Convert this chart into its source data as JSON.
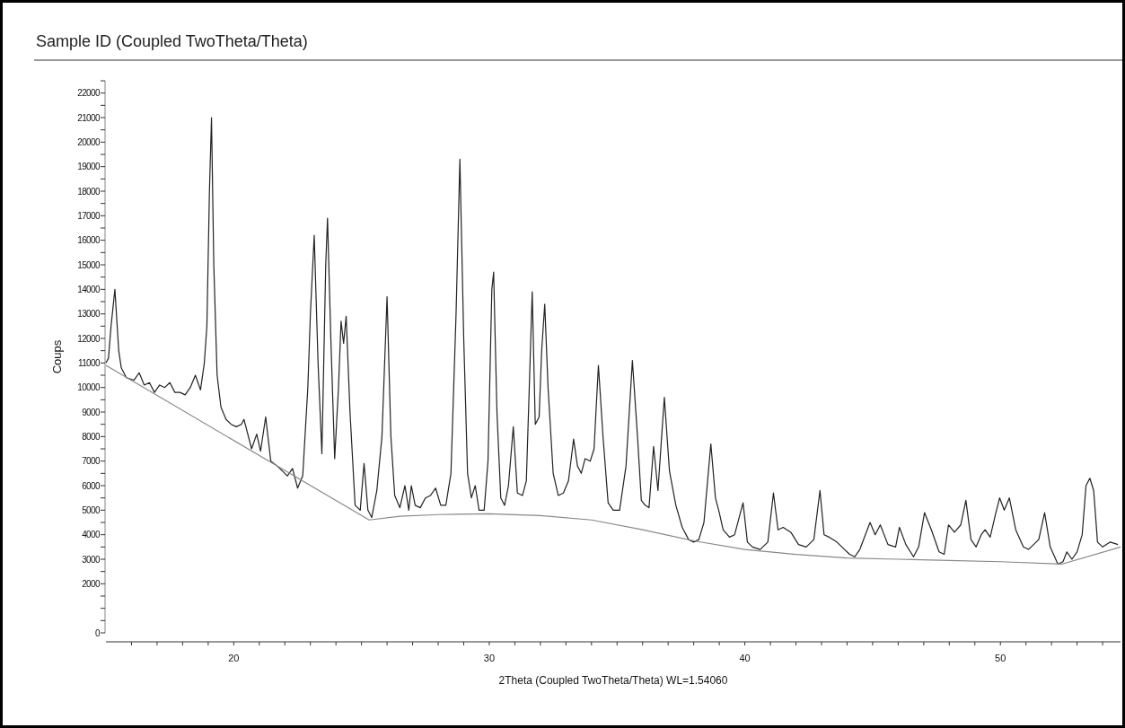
{
  "chart_data": {
    "type": "line",
    "title": "Sample ID (Coupled TwoTheta/Theta)",
    "xlabel": "2Theta (Coupled TwoTheta/Theta) WL=1.54060",
    "ylabel": "Coups",
    "xlim": [
      15,
      54.7
    ],
    "ylim": [
      0,
      22500
    ],
    "xticks": [
      {
        "value": 16,
        "label": null
      },
      {
        "value": 17,
        "label": null
      },
      {
        "value": 18,
        "label": null
      },
      {
        "value": 19,
        "label": null
      },
      20,
      {
        "value": 21,
        "label": null
      },
      {
        "value": 22,
        "label": null
      },
      {
        "value": 23,
        "label": null
      },
      {
        "value": 24,
        "label": null
      },
      {
        "value": 25,
        "label": null
      },
      {
        "value": 26,
        "label": null
      },
      {
        "value": 27,
        "label": null
      },
      {
        "value": 28,
        "label": null
      },
      {
        "value": 29,
        "label": null
      },
      30,
      {
        "value": 31,
        "label": null
      },
      {
        "value": 32,
        "label": null
      },
      {
        "value": 33,
        "label": null
      },
      {
        "value": 34,
        "label": null
      },
      {
        "value": 35,
        "label": null
      },
      {
        "value": 36,
        "label": null
      },
      {
        "value": 37,
        "label": null
      },
      {
        "value": 38,
        "label": null
      },
      {
        "value": 39,
        "label": null
      },
      40,
      {
        "value": 41,
        "label": null
      },
      {
        "value": 42,
        "label": null
      },
      {
        "value": 43,
        "label": null
      },
      {
        "value": 44,
        "label": null
      },
      {
        "value": 45,
        "label": null
      },
      {
        "value": 46,
        "label": null
      },
      {
        "value": 47,
        "label": null
      },
      {
        "value": 48,
        "label": null
      },
      {
        "value": 49,
        "label": null
      },
      50,
      {
        "value": 51,
        "label": null
      },
      {
        "value": 52,
        "label": null
      },
      {
        "value": 53,
        "label": null
      },
      {
        "value": 54,
        "label": null
      }
    ],
    "yticks": [
      0,
      {
        "value": 500,
        "label": null
      },
      {
        "value": 1000,
        "label": null
      },
      {
        "value": 1500,
        "label": null
      },
      2000,
      {
        "value": 2500,
        "label": null
      },
      3000,
      {
        "value": 3500,
        "label": null
      },
      4000,
      {
        "value": 4500,
        "label": null
      },
      5000,
      {
        "value": 5500,
        "label": null
      },
      6000,
      {
        "value": 6500,
        "label": null
      },
      7000,
      {
        "value": 7500,
        "label": null
      },
      8000,
      {
        "value": 8500,
        "label": null
      },
      9000,
      {
        "value": 9500,
        "label": null
      },
      10000,
      {
        "value": 10500,
        "label": null
      },
      11000,
      {
        "value": 11500,
        "label": null
      },
      12000,
      {
        "value": 12500,
        "label": null
      },
      13000,
      {
        "value": 13500,
        "label": null
      },
      14000,
      {
        "value": 14500,
        "label": null
      },
      15000,
      {
        "value": 15500,
        "label": null
      },
      16000,
      {
        "value": 16500,
        "label": null
      },
      17000,
      {
        "value": 17500,
        "label": null
      },
      18000,
      {
        "value": 18500,
        "label": null
      },
      19000,
      {
        "value": 19500,
        "label": null
      },
      20000,
      {
        "value": 20500,
        "label": null
      },
      21000,
      {
        "value": 21500,
        "label": null
      },
      22000,
      {
        "value": 22500,
        "label": null
      }
    ],
    "marker": "none",
    "line_style": "solid",
    "series": [
      {
        "color": "#222222",
        "x": [
          15.0,
          15.1,
          15.2,
          15.35,
          15.5,
          15.6,
          15.8,
          16.1,
          16.3,
          16.5,
          16.7,
          16.9,
          17.1,
          17.3,
          17.5,
          17.7,
          17.9,
          18.1,
          18.3,
          18.5,
          18.7,
          18.85,
          18.95,
          19.05,
          19.13,
          19.22,
          19.35,
          19.5,
          19.7,
          19.9,
          20.1,
          20.3,
          20.4,
          20.7,
          20.9,
          21.05,
          21.25,
          21.45,
          21.7,
          21.9,
          22.1,
          22.3,
          22.5,
          22.7,
          22.9,
          23.0,
          23.15,
          23.3,
          23.45,
          23.6,
          23.67,
          23.8,
          23.95,
          24.1,
          24.2,
          24.3,
          24.4,
          24.55,
          24.75,
          24.95,
          25.1,
          25.25,
          25.4,
          25.6,
          25.8,
          26.0,
          26.15,
          26.3,
          26.5,
          26.7,
          26.85,
          26.95,
          27.1,
          27.3,
          27.5,
          27.7,
          27.9,
          28.1,
          28.3,
          28.5,
          28.7,
          28.85,
          29.0,
          29.15,
          29.3,
          29.45,
          29.6,
          29.8,
          29.95,
          30.1,
          30.17,
          30.3,
          30.45,
          30.6,
          30.75,
          30.94,
          31.1,
          31.3,
          31.45,
          31.55,
          31.68,
          31.8,
          31.95,
          32.05,
          32.17,
          32.3,
          32.5,
          32.7,
          32.9,
          33.1,
          33.3,
          33.45,
          33.6,
          33.75,
          33.95,
          34.1,
          34.27,
          34.45,
          34.65,
          34.85,
          35.1,
          35.35,
          35.6,
          35.8,
          35.95,
          36.1,
          36.25,
          36.43,
          36.6,
          36.85,
          37.05,
          37.3,
          37.55,
          37.8,
          38.0,
          38.2,
          38.4,
          38.67,
          38.85,
          39.0,
          39.15,
          39.4,
          39.6,
          39.93,
          40.1,
          40.3,
          40.6,
          40.9,
          41.12,
          41.3,
          41.5,
          41.8,
          42.1,
          42.4,
          42.7,
          42.94,
          43.1,
          43.3,
          43.6,
          43.9,
          44.1,
          44.3,
          44.5,
          44.9,
          45.1,
          45.3,
          45.6,
          45.9,
          46.05,
          46.3,
          46.6,
          46.8,
          47.03,
          47.3,
          47.6,
          47.8,
          47.97,
          48.2,
          48.45,
          48.65,
          48.85,
          49.05,
          49.25,
          49.4,
          49.6,
          49.8,
          49.97,
          50.15,
          50.35,
          50.6,
          50.9,
          51.1,
          51.5,
          51.73,
          51.95,
          52.25,
          52.45,
          52.6,
          52.8,
          53.0,
          53.2,
          53.35,
          53.5,
          53.65,
          53.8,
          54.0,
          54.3,
          54.6
        ],
        "values": [
          11000,
          11200,
          12500,
          14000,
          11500,
          10800,
          10400,
          10300,
          10600,
          10100,
          10200,
          9800,
          10100,
          10000,
          10200,
          9800,
          9800,
          9700,
          10000,
          10500,
          9900,
          11000,
          12500,
          18000,
          21000,
          15000,
          10500,
          9200,
          8700,
          8500,
          8400,
          8500,
          8700,
          7500,
          8100,
          7400,
          8800,
          7000,
          6800,
          6600,
          6400,
          6700,
          5900,
          6400,
          10000,
          13000,
          16200,
          11000,
          7300,
          15000,
          16900,
          12000,
          7100,
          10000,
          12700,
          11800,
          12900,
          9000,
          5200,
          5000,
          6900,
          5000,
          4700,
          5800,
          8000,
          13700,
          8000,
          5600,
          5100,
          6000,
          5000,
          6000,
          5200,
          5100,
          5500,
          5600,
          5900,
          5200,
          5200,
          6500,
          13000,
          19300,
          12000,
          6500,
          5500,
          6000,
          5000,
          5000,
          7000,
          14000,
          14700,
          9000,
          5500,
          5200,
          6000,
          8400,
          5700,
          5600,
          6200,
          9500,
          13900,
          8500,
          8800,
          11500,
          13400,
          10000,
          6500,
          5600,
          5700,
          6200,
          7900,
          6800,
          6500,
          7100,
          7000,
          7500,
          10900,
          8000,
          5300,
          5000,
          5000,
          6800,
          11100,
          8000,
          5400,
          5200,
          5100,
          7600,
          5800,
          9600,
          6600,
          5200,
          4300,
          3800,
          3700,
          3800,
          4500,
          7700,
          5500,
          4900,
          4200,
          3900,
          4000,
          5300,
          3700,
          3500,
          3400,
          3700,
          5700,
          4200,
          4300,
          4100,
          3600,
          3500,
          3800,
          5800,
          4000,
          3900,
          3700,
          3400,
          3200,
          3100,
          3400,
          4500,
          4000,
          4400,
          3600,
          3500,
          4300,
          3600,
          3100,
          3500,
          4900,
          4200,
          3300,
          3200,
          4400,
          4100,
          4400,
          5400,
          3800,
          3500,
          4000,
          4200,
          3900,
          4800,
          5500,
          5000,
          5500,
          4200,
          3500,
          3400,
          3800,
          4900,
          3500,
          2800,
          2900,
          3300,
          3000,
          3300,
          4000,
          6000,
          6300,
          5800,
          3700,
          3500,
          3700,
          3600
        ]
      },
      {
        "color": "#888888",
        "x": [
          15.0,
          25.3,
          26.5,
          28,
          30,
          32,
          34,
          36,
          38,
          40,
          42,
          44,
          46,
          48,
          50,
          52.4,
          54.7
        ],
        "values": [
          10900,
          4600,
          4750,
          4820,
          4850,
          4780,
          4600,
          4200,
          3750,
          3400,
          3200,
          3050,
          3000,
          2950,
          2900,
          2800,
          3500
        ]
      }
    ]
  }
}
